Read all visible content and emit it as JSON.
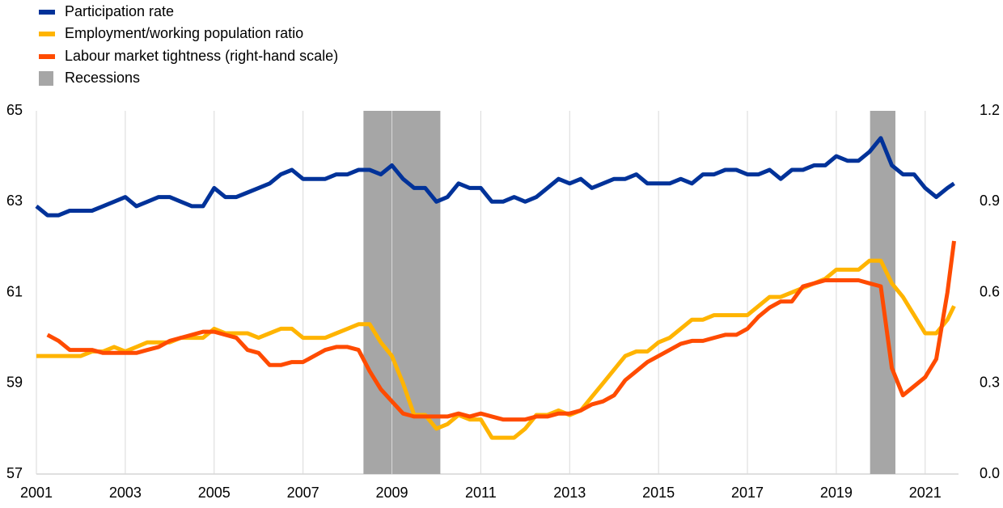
{
  "chart_data": {
    "type": "line",
    "xlim": [
      2001,
      2021.75
    ],
    "xticks": [
      2001,
      2003,
      2005,
      2007,
      2009,
      2011,
      2013,
      2015,
      2017,
      2019,
      2021
    ],
    "ylim": [
      57,
      65
    ],
    "yticks": [
      57,
      59,
      61,
      63,
      65
    ],
    "y2lim": [
      0,
      1.2
    ],
    "y2ticks": [
      {
        "value": 0,
        "label": "0.0"
      },
      0.3,
      0.6,
      0.9,
      1.2
    ],
    "grid": "x",
    "legend": "top-left",
    "recessions_name": "Recessions",
    "recessions_color": "#a6a6a6",
    "recessions": [
      [
        2008.36,
        2010.09
      ],
      [
        2019.76,
        2020.33
      ]
    ],
    "x": [
      2001,
      2001.25,
      2001.5,
      2001.75,
      2002,
      2002.25,
      2002.5,
      2002.75,
      2003,
      2003.25,
      2003.5,
      2003.75,
      2004,
      2004.25,
      2004.5,
      2004.75,
      2005,
      2005.25,
      2005.5,
      2005.75,
      2006,
      2006.25,
      2006.5,
      2006.75,
      2007,
      2007.25,
      2007.5,
      2007.75,
      2008,
      2008.25,
      2008.5,
      2008.75,
      2009,
      2009.25,
      2009.5,
      2009.75,
      2010,
      2010.25,
      2010.5,
      2010.75,
      2011,
      2011.25,
      2011.5,
      2011.75,
      2012,
      2012.25,
      2012.5,
      2012.75,
      2013,
      2013.25,
      2013.5,
      2013.75,
      2014,
      2014.25,
      2014.5,
      2014.75,
      2015,
      2015.25,
      2015.5,
      2015.75,
      2016,
      2016.25,
      2016.5,
      2016.75,
      2017,
      2017.25,
      2017.5,
      2017.75,
      2018,
      2018.25,
      2018.5,
      2018.75,
      2019,
      2019.25,
      2019.5,
      2019.75,
      2020,
      2020.25,
      2020.5,
      2020.75,
      2021,
      2021.25,
      2021.5,
      2021.65
    ],
    "series": [
      {
        "name": "Participation rate",
        "color": "#003299",
        "values": [
          62.9,
          62.7,
          62.7,
          62.8,
          62.8,
          62.8,
          62.9,
          63.0,
          63.1,
          62.9,
          63.0,
          63.1,
          63.1,
          63.0,
          62.9,
          62.9,
          63.3,
          63.1,
          63.1,
          63.2,
          63.3,
          63.4,
          63.6,
          63.7,
          63.5,
          63.5,
          63.5,
          63.6,
          63.6,
          63.7,
          63.7,
          63.6,
          63.8,
          63.5,
          63.3,
          63.3,
          63.0,
          63.1,
          63.4,
          63.3,
          63.3,
          63.0,
          63.0,
          63.1,
          63.0,
          63.1,
          63.3,
          63.5,
          63.4,
          63.5,
          63.3,
          63.4,
          63.5,
          63.5,
          63.6,
          63.4,
          63.4,
          63.4,
          63.5,
          63.4,
          63.6,
          63.6,
          63.7,
          63.7,
          63.6,
          63.6,
          63.7,
          63.5,
          63.7,
          63.7,
          63.8,
          63.8,
          64.0,
          63.9,
          63.9,
          64.1,
          64.4,
          63.8,
          63.6,
          63.6,
          63.3,
          63.1,
          63.3,
          63.4
        ]
      },
      {
        "name": "Employment/working population ratio",
        "color": "#ffb400",
        "values": [
          59.6,
          59.6,
          59.6,
          59.6,
          59.6,
          59.7,
          59.7,
          59.8,
          59.7,
          59.8,
          59.9,
          59.9,
          59.9,
          60.0,
          60.0,
          60.0,
          60.2,
          60.1,
          60.1,
          60.1,
          60.0,
          60.1,
          60.2,
          60.2,
          60.0,
          60.0,
          60.0,
          60.1,
          60.2,
          60.3,
          60.3,
          59.9,
          59.6,
          59.0,
          58.3,
          58.3,
          58.0,
          58.1,
          58.3,
          58.2,
          58.2,
          57.8,
          57.8,
          57.8,
          58.0,
          58.3,
          58.3,
          58.4,
          58.3,
          58.4,
          58.7,
          59.0,
          59.3,
          59.6,
          59.7,
          59.7,
          59.9,
          60.0,
          60.2,
          60.4,
          60.4,
          60.5,
          60.5,
          60.5,
          60.5,
          60.7,
          60.9,
          60.9,
          61.0,
          61.1,
          61.2,
          61.3,
          61.5,
          61.5,
          61.5,
          61.7,
          61.7,
          61.2,
          60.9,
          60.5,
          60.1,
          60.1,
          60.4,
          60.7
        ]
      },
      {
        "name": "Labour market tightness (right-hand scale)",
        "color": "#ff4b00",
        "axis": "y2",
        "values": [
          null,
          0.46,
          0.44,
          0.41,
          0.41,
          0.41,
          0.4,
          0.4,
          0.4,
          0.4,
          0.41,
          0.42,
          0.44,
          0.45,
          0.46,
          0.47,
          0.47,
          0.46,
          0.45,
          0.41,
          0.4,
          0.36,
          0.36,
          0.37,
          0.37,
          0.39,
          0.41,
          0.42,
          0.42,
          0.41,
          0.34,
          0.28,
          0.24,
          0.2,
          0.19,
          0.19,
          0.19,
          0.19,
          0.2,
          0.19,
          0.2,
          0.19,
          0.18,
          0.18,
          0.18,
          0.19,
          0.19,
          0.2,
          0.2,
          0.21,
          0.23,
          0.24,
          0.26,
          0.31,
          0.34,
          0.37,
          0.39,
          0.41,
          0.43,
          0.44,
          0.44,
          0.45,
          0.46,
          0.46,
          0.48,
          0.52,
          0.55,
          0.57,
          0.57,
          0.62,
          0.63,
          0.64,
          0.64,
          0.64,
          0.64,
          0.63,
          0.62,
          0.35,
          0.26,
          0.29,
          0.32,
          0.38,
          0.6,
          0.77
        ]
      }
    ]
  }
}
